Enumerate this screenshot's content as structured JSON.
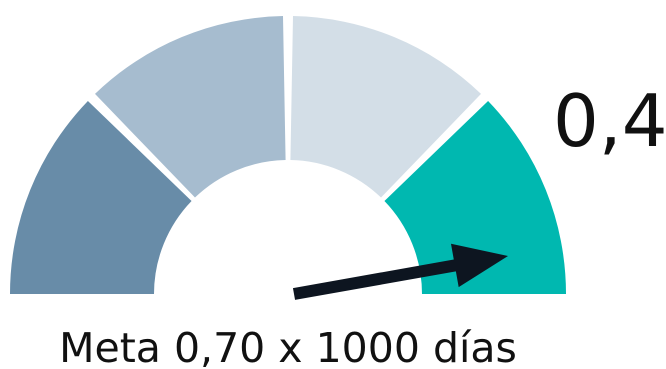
{
  "chart_data": {
    "type": "gauge",
    "value_label": "0,4",
    "caption": "Meta 0,70 x 1000 días",
    "segment_colors": [
      "#688ca8",
      "#a6bccf",
      "#d3dee7",
      "#00b8b0"
    ],
    "needle_color": "#0d1520"
  }
}
